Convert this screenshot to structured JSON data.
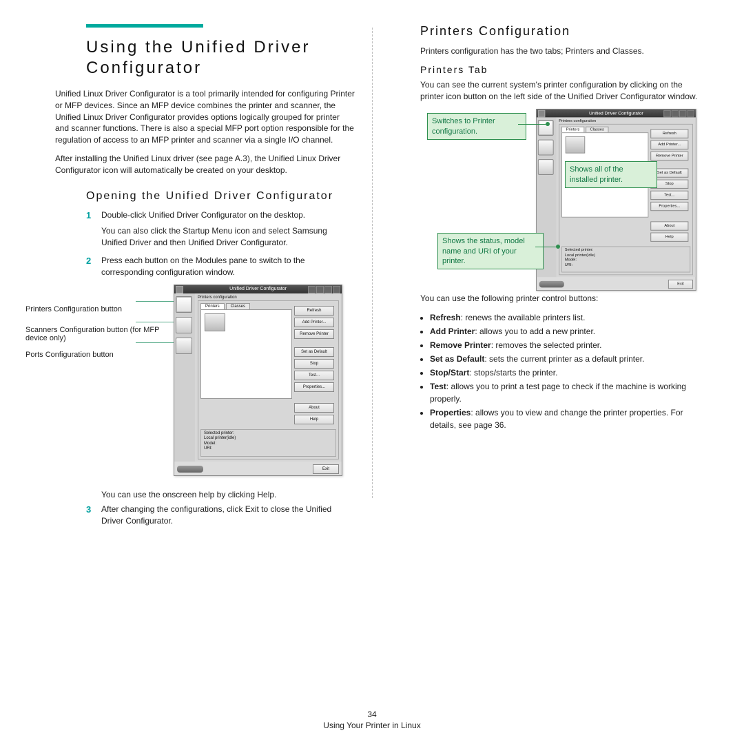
{
  "accent_color": "#00a99d",
  "left": {
    "title": "Using the Unified Driver Configurator",
    "para1": "Unified Linux Driver Configurator is a tool primarily intended for configuring Printer or MFP devices. Since an MFP device combines the printer and scanner, the Unified Linux Driver Configurator provides options logically grouped for printer and scanner functions. There is also a special MFP port option responsible for the regulation of access to an MFP printer and scanner via a single I/O channel.",
    "para2": "After installing the Unified Linux driver (see page A.3), the Unified Linux Driver Configurator icon will automatically be created on your desktop.",
    "subhead": "Opening the Unified Driver Configurator",
    "step1_a": "Double-click Unified Driver Configurator on the desktop.",
    "step1_b": "You can also click the Startup Menu icon and select Samsung Unified Driver and then Unified Driver Configurator.",
    "step2": "Press each button on the Modules pane to switch to the corresponding configuration window.",
    "callout1": "Printers Configuration button",
    "callout2": "Scanners Configuration button (for MFP device only)",
    "callout3": "Ports Configuration button",
    "helpline": "You can use the onscreen help by clicking Help.",
    "step3": "After changing the configurations, click Exit to close the Unified Driver Configurator."
  },
  "right": {
    "title": "Printers Configuration",
    "intro": "Printers configuration has the two tabs; Printers and Classes.",
    "tabhead": "Printers Tab",
    "tabpara": "You can see the current system's printer configuration by clicking on the printer icon button on the left side of the Unified Driver Configurator window.",
    "annot1": "Switches to Printer configuration.",
    "annot2": "Shows all of the installed printer.",
    "annot3": "Shows the status, model name and URI of your printer.",
    "uselabel": "You can use the following printer control buttons:",
    "bullets": [
      {
        "b": "Refresh",
        "t": ": renews the available printers list."
      },
      {
        "b": "Add Printer",
        "t": ": allows you to add a new printer."
      },
      {
        "b": "Remove Printer",
        "t": ": removes the selected printer."
      },
      {
        "b": "Set as Default",
        "t": ": sets the current printer as a default printer."
      },
      {
        "b": "Stop/Start",
        "t": ": stops/starts the printer."
      },
      {
        "b": "Test",
        "t": ": allows you to print a test page to check if the machine is working properly."
      },
      {
        "b": "Properties",
        "t": ": allows you to view and change the printer properties. For details, see page 36."
      }
    ]
  },
  "app": {
    "title": "Unified Driver Configurator",
    "group_label": "Printers configuration",
    "tabs": [
      "Printers",
      "Classes"
    ],
    "buttons": [
      "Refresh",
      "Add Printer...",
      "Remove Printer",
      "Set as Default",
      "Stop",
      "Test...",
      "Properties..."
    ],
    "buttons2": [
      "About",
      "Help"
    ],
    "sel_head": "Selected printer:",
    "sel_l1": "Local printer(idle)",
    "sel_l2": "Model:",
    "sel_l3": "URI:",
    "exit": "Exit"
  },
  "footer": {
    "page": "34",
    "caption": "Using Your Printer in Linux"
  }
}
